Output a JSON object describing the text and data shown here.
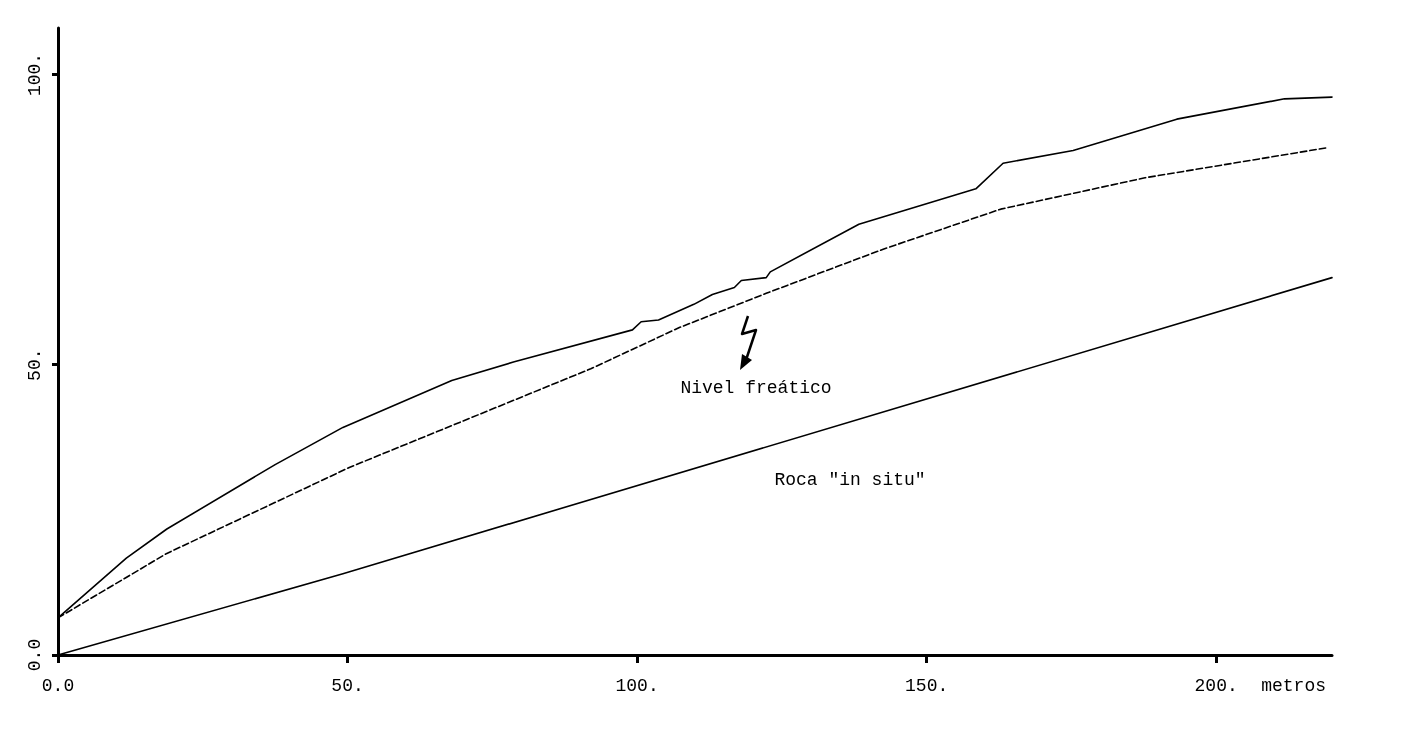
{
  "chart_data": {
    "type": "line",
    "xlabel": "metros",
    "xlim": [
      0,
      220
    ],
    "ylim": [
      0,
      108
    ],
    "xticks": [
      {
        "value": 0,
        "label": "0.0"
      },
      {
        "value": 50,
        "label": "50."
      },
      {
        "value": 100,
        "label": "100."
      },
      {
        "value": 150,
        "label": "150."
      },
      {
        "value": 200,
        "label": "200."
      }
    ],
    "yticks": [
      {
        "value": 0,
        "label": "0.0"
      },
      {
        "value": 50,
        "label": "50."
      },
      {
        "value": 100,
        "label": "100."
      }
    ],
    "grid": false,
    "marker": "none",
    "series": [
      {
        "color": "#000000",
        "line_style": "solid",
        "x": [
          0,
          11.8,
          18.8,
          37.5,
          49.2,
          68,
          78.8,
          99.2,
          100.7,
          103.7,
          109.8,
          113,
          116.8,
          118,
          122.3,
          123,
          138.3,
          158.5,
          163.2,
          175.3,
          193.2,
          211.8,
          220
        ],
        "values": [
          6.4,
          16.7,
          21.7,
          32.8,
          39.2,
          47.3,
          50.5,
          56,
          57.4,
          57.7,
          60.4,
          62.1,
          63.3,
          64.5,
          65,
          66,
          74.2,
          80.3,
          84.7,
          86.9,
          92.3,
          95.8,
          96.1
        ]
      },
      {
        "color": "#000000",
        "line_style": "dashed",
        "x": [
          0,
          18.8,
          50.3,
          92,
          107.3,
          122.3,
          142.5,
          162.8,
          187.7,
          219.3
        ],
        "values": [
          6.4,
          17.5,
          32.3,
          49.3,
          56.4,
          62.3,
          69.9,
          76.8,
          82.2,
          87.4
        ]
      },
      {
        "color": "#000000",
        "line_style": "solid",
        "x": [
          0,
          49.2,
          220
        ],
        "values": [
          0,
          14,
          65
        ]
      }
    ],
    "annotations": [
      "Nivel freático",
      "Roca \"in situ\""
    ]
  }
}
